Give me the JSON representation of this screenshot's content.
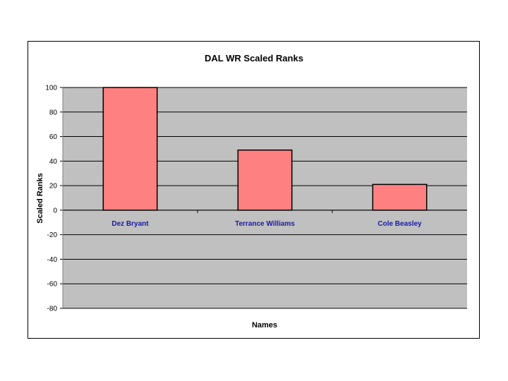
{
  "chart_data": {
    "type": "bar",
    "title": "DAL WR Scaled Ranks",
    "xlabel": "Names",
    "ylabel": "Scaled Ranks",
    "categories": [
      "Dez Bryant",
      "Terrance Williams",
      "Cole Beasley"
    ],
    "values": [
      100,
      49,
      21
    ],
    "ylim": [
      -80,
      100
    ],
    "yticks": [
      100,
      80,
      60,
      40,
      20,
      0,
      -20,
      -40,
      -60,
      -80
    ],
    "grid": true,
    "legend": "none",
    "colors": {
      "bar": "#ff8080",
      "plot_background": "#c0c0c0",
      "category_label": "#1a1aa6"
    }
  }
}
